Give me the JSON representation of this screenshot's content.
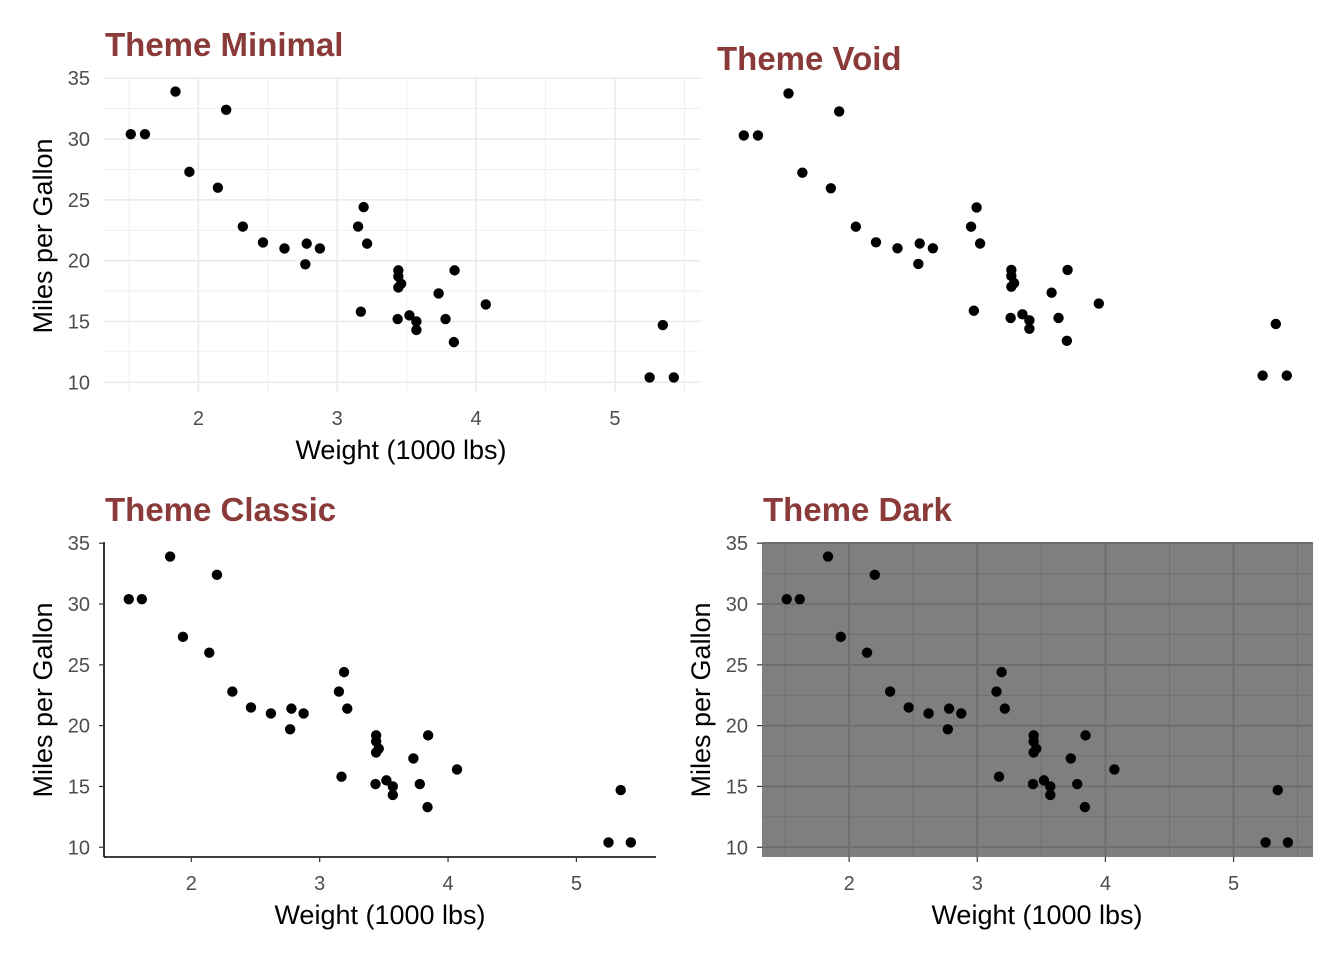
{
  "colors": {
    "title": "#8B3A3A",
    "point": "#000000",
    "minimal_grid": "#ebebeb",
    "dark_panel": "#7f7f7f",
    "dark_grid": "#6b6b6b",
    "tick_text": "#4d4d4d"
  },
  "chart_data": [
    {
      "type": "scatter",
      "title": "Theme Minimal",
      "theme": "minimal",
      "xlabel": "Weight (1000 lbs)",
      "ylabel": "Miles per Gallon",
      "xticks": [
        "2",
        "3",
        "4",
        "5"
      ],
      "yticks": [
        "10",
        "15",
        "20",
        "25",
        "30",
        "35"
      ],
      "xlim": [
        1.32,
        5.62
      ],
      "ylim": [
        9.2,
        35.1
      ]
    },
    {
      "type": "scatter",
      "title": "Theme Void",
      "theme": "void",
      "xlabel": "",
      "ylabel": "",
      "xticks": [],
      "yticks": [],
      "xlim": [
        1.32,
        5.62
      ],
      "ylim": [
        9.2,
        35.1
      ]
    },
    {
      "type": "scatter",
      "title": "Theme Classic",
      "theme": "classic",
      "xlabel": "Weight (1000 lbs)",
      "ylabel": "Miles per Gallon",
      "xticks": [
        "2",
        "3",
        "4",
        "5"
      ],
      "yticks": [
        "10",
        "15",
        "20",
        "25",
        "30",
        "35"
      ],
      "xlim": [
        1.32,
        5.62
      ],
      "ylim": [
        9.2,
        35.1
      ]
    },
    {
      "type": "scatter",
      "title": "Theme Dark",
      "theme": "dark",
      "xlabel": "Weight (1000 lbs)",
      "ylabel": "Miles per Gallon",
      "xticks": [
        "2",
        "3",
        "4",
        "5"
      ],
      "yticks": [
        "10",
        "15",
        "20",
        "25",
        "30",
        "35"
      ],
      "xlim": [
        1.32,
        5.62
      ],
      "ylim": [
        9.2,
        35.1
      ]
    }
  ],
  "points": {
    "x": [
      2.62,
      2.875,
      2.32,
      3.215,
      3.44,
      3.46,
      3.57,
      3.19,
      3.15,
      3.44,
      3.44,
      4.07,
      3.73,
      3.78,
      5.25,
      5.424,
      5.345,
      2.2,
      1.615,
      1.835,
      2.465,
      3.52,
      3.435,
      3.84,
      3.845,
      1.935,
      2.14,
      1.513,
      3.17,
      2.77,
      3.57,
      2.78
    ],
    "y": [
      21.0,
      21.0,
      22.8,
      21.4,
      18.7,
      18.1,
      14.3,
      24.4,
      22.8,
      19.2,
      17.8,
      16.4,
      17.3,
      15.2,
      10.4,
      10.4,
      14.7,
      32.4,
      30.4,
      33.9,
      21.5,
      15.5,
      15.2,
      13.3,
      19.2,
      27.3,
      26.0,
      30.4,
      15.8,
      19.7,
      15.0,
      21.4
    ]
  }
}
